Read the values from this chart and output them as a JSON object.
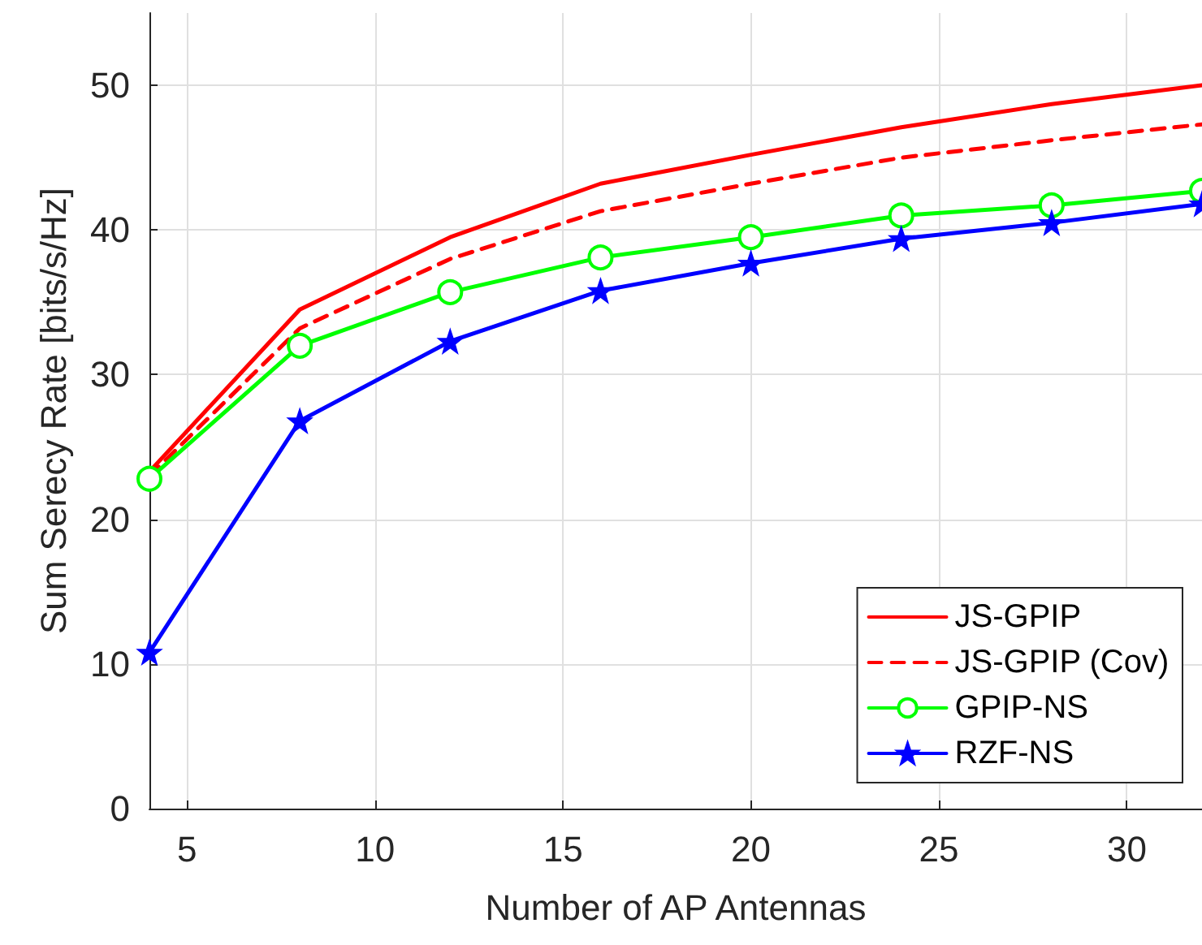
{
  "chart_data": {
    "type": "line",
    "xlabel": "Number of AP Antennas",
    "ylabel": "Sum Serecy Rate [bits/s/Hz]",
    "x": [
      4,
      8,
      12,
      16,
      20,
      24,
      28,
      32
    ],
    "series": [
      {
        "name": "JS-GPIP",
        "color": "#ff0000",
        "marker": "none",
        "line_style": "solid",
        "values": [
          23.3,
          34.5,
          39.5,
          43.2,
          45.2,
          47.1,
          48.7,
          50
        ]
      },
      {
        "name": "JS-GPIP (Cov)",
        "color": "#ff0000",
        "marker": "none",
        "line_style": "dashed",
        "values": [
          23,
          33.2,
          38,
          41.3,
          43.2,
          45,
          46.2,
          47.3
        ]
      },
      {
        "name": "GPIP-NS",
        "color": "#00ff00",
        "marker": "circle",
        "line_style": "solid",
        "values": [
          22.8,
          32,
          35.7,
          38.1,
          39.5,
          41,
          41.7,
          42.7
        ]
      },
      {
        "name": "RZF-NS",
        "color": "#0000ff",
        "marker": "star",
        "line_style": "solid",
        "values": [
          10.8,
          26.8,
          32.3,
          35.8,
          37.7,
          39.4,
          40.5,
          41.8
        ]
      }
    ],
    "xlim": [
      4,
      32
    ],
    "xticks": [
      5,
      10,
      15,
      20,
      25,
      30
    ],
    "ylim": [
      0,
      55
    ],
    "yticks": [
      0,
      10,
      20,
      30,
      40,
      50
    ],
    "grid": true,
    "legend": "bottom right"
  }
}
